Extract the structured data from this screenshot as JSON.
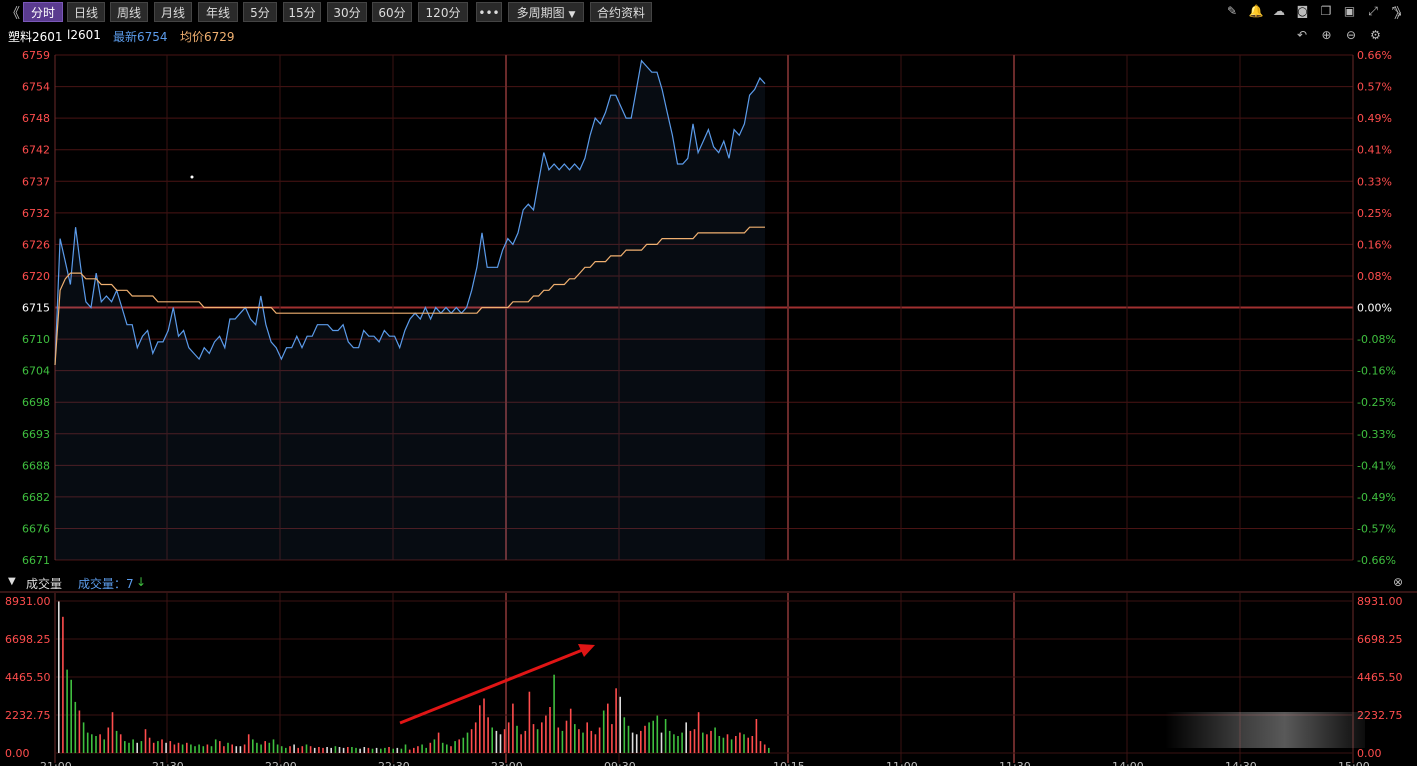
{
  "toolbar": {
    "back_glyph": "《",
    "forward_glyph": "》",
    "periods": [
      "分时",
      "日线",
      "周线",
      "月线",
      "年线",
      "5分",
      "15分",
      "30分",
      "60分",
      "120分"
    ],
    "active_period": "分时",
    "more_label": "•••",
    "multi_period_label": "多周期图",
    "contract_info_label": "合约资料",
    "right_icons": [
      "edit-icon",
      "bell-icon",
      "cloud-icon",
      "camera-icon",
      "copy-icon",
      "window-icon",
      "expand-icon",
      "collapse-icon"
    ],
    "sub_icons": [
      "undo-icon",
      "zoom-in-icon",
      "zoom-out-icon",
      "settings-icon"
    ]
  },
  "info": {
    "name": "塑料2601",
    "code": "l2601",
    "latest": "最新6754",
    "avg": "均价6729"
  },
  "volume_header": {
    "title": "成交量",
    "value_label": "成交量：7",
    "arrow": "↓"
  },
  "colors": {
    "up": "#ff4d4d",
    "down": "#3fbf3f",
    "price_line": "#5b9bea",
    "avg_line": "#f0b070",
    "grid": "#5a1a1a",
    "arrow": "#e01515"
  },
  "chart_data": [
    {
      "type": "line",
      "ylim": [
        6671,
        6759
      ],
      "y_ticks_left": [
        "6759",
        "6754",
        "6748",
        "6742",
        "6737",
        "6732",
        "6726",
        "6720",
        "6715",
        "6710",
        "6704",
        "6698",
        "6693",
        "6688",
        "6682",
        "6676",
        "6671"
      ],
      "y_ticks_right": [
        "0.66%",
        "0.57%",
        "0.49%",
        "0.41%",
        "0.33%",
        "0.25%",
        "0.16%",
        "0.08%",
        "0.00%",
        "-0.08%",
        "-0.16%",
        "-0.25%",
        "-0.33%",
        "-0.41%",
        "-0.49%",
        "-0.57%",
        "-0.66%"
      ],
      "reference_price": 6715,
      "series": [
        {
          "values": [
            6705,
            6727,
            6723,
            6719,
            6729,
            6722,
            6716,
            6715,
            6721,
            6716,
            6717,
            6716,
            6718,
            6715,
            6712,
            6712,
            6708,
            6710,
            6711,
            6707,
            6709,
            6709,
            6711,
            6715,
            6710,
            6711,
            6708,
            6707,
            6706,
            6708,
            6707,
            6709,
            6710,
            6708,
            6713,
            6713,
            6714,
            6715,
            6713,
            6712,
            6717,
            6712,
            6709,
            6708,
            6706,
            6708,
            6708,
            6710,
            6708,
            6710,
            6710,
            6712,
            6712,
            6712,
            6711,
            6711,
            6712,
            6709,
            6708,
            6708,
            6711,
            6710,
            6710,
            6709,
            6711,
            6710,
            6710,
            6708,
            6711,
            6713,
            6714,
            6713,
            6715,
            6713,
            6715,
            6714,
            6715,
            6714,
            6715,
            6714,
            6715,
            6718,
            6722,
            6728,
            6722,
            6722,
            6722,
            6725,
            6727,
            6726,
            6728,
            6732,
            6733,
            6732,
            6737,
            6742,
            6739,
            6740,
            6739,
            6740,
            6739,
            6740,
            6739,
            6741,
            6745,
            6748,
            6747,
            6749,
            6752,
            6752,
            6750,
            6748,
            6748,
            6753,
            6758,
            6757,
            6756,
            6756,
            6753,
            6749,
            6745,
            6740,
            6740,
            6741,
            6747,
            6742,
            6744,
            6746,
            6743,
            6742,
            6744,
            6741,
            6746,
            6745,
            6747,
            6752,
            6753,
            6755,
            6754
          ]
        },
        {
          "values": [
            6705,
            6718,
            6720,
            6721,
            6721,
            6721,
            6720,
            6720,
            6720,
            6719,
            6719,
            6719,
            6718,
            6718,
            6718,
            6717,
            6717,
            6717,
            6717,
            6717,
            6716,
            6716,
            6716,
            6716,
            6716,
            6716,
            6716,
            6716,
            6716,
            6715,
            6715,
            6715,
            6715,
            6715,
            6715,
            6715,
            6715,
            6715,
            6715,
            6715,
            6715,
            6715,
            6715,
            6714,
            6714,
            6714,
            6714,
            6714,
            6714,
            6714,
            6714,
            6714,
            6714,
            6714,
            6714,
            6714,
            6714,
            6714,
            6714,
            6714,
            6714,
            6714,
            6714,
            6714,
            6714,
            6714,
            6714,
            6714,
            6714,
            6714,
            6714,
            6714,
            6714,
            6714,
            6714,
            6714,
            6714,
            6714,
            6714,
            6714,
            6714,
            6714,
            6714,
            6715,
            6715,
            6715,
            6715,
            6715,
            6715,
            6716,
            6716,
            6716,
            6716,
            6717,
            6717,
            6718,
            6718,
            6719,
            6719,
            6719,
            6720,
            6720,
            6721,
            6722,
            6722,
            6723,
            6723,
            6723,
            6724,
            6724,
            6724,
            6725,
            6725,
            6725,
            6725,
            6726,
            6726,
            6726,
            6727,
            6727,
            6727,
            6727,
            6727,
            6727,
            6727,
            6728,
            6728,
            6728,
            6728,
            6728,
            6728,
            6728,
            6728,
            6728,
            6728,
            6729,
            6729,
            6729,
            6729
          ]
        }
      ],
      "x_ticks": [
        "21:00",
        "21:30",
        "22:00",
        "22:30",
        "23:00",
        "09:30",
        "10:15",
        "11:00",
        "11:30",
        "14:00",
        "14:30",
        "15:00"
      ]
    },
    {
      "type": "bar",
      "ylim": [
        0,
        8931
      ],
      "y_ticks": [
        "8931.00",
        "6698.25",
        "4465.50",
        "2232.75",
        "0.00"
      ],
      "values": [
        8900,
        8000,
        4900,
        4300,
        3000,
        2500,
        1800,
        1200,
        1100,
        1000,
        1100,
        800,
        1500,
        2400,
        1300,
        1100,
        700,
        600,
        800,
        600,
        700,
        1400,
        900,
        600,
        700,
        800,
        600,
        700,
        500,
        600,
        500,
        600,
        500,
        400,
        500,
        400,
        500,
        400,
        800,
        700,
        400,
        600,
        500,
        400,
        400,
        500,
        1100,
        800,
        600,
        500,
        700,
        600,
        800,
        500,
        400,
        300,
        400,
        500,
        300,
        400,
        500,
        400,
        300,
        350,
        300,
        350,
        300,
        400,
        350,
        300,
        350,
        350,
        300,
        250,
        350,
        300,
        250,
        300,
        250,
        300,
        350,
        250,
        300,
        250,
        500,
        200,
        300,
        400,
        500,
        300,
        600,
        800,
        1200,
        600,
        500,
        400,
        700,
        800,
        900,
        1200,
        1400,
        1800,
        2800,
        3200,
        2100,
        1500,
        1300,
        1100,
        1400,
        1800,
        2900,
        1600,
        1100,
        1300,
        3600,
        1700,
        1400,
        1800,
        2200,
        2700,
        4600,
        1500,
        1300,
        1900,
        2600,
        1700,
        1400,
        1200,
        1800,
        1300,
        1100,
        1500,
        2500,
        2900,
        1700,
        3800,
        3300,
        2100,
        1600,
        1200,
        1100,
        1300,
        1600,
        1800,
        1900,
        2200,
        1200,
        2000,
        1300,
        1100,
        1000,
        1200,
        1800,
        1300,
        1400,
        2400,
        1200,
        1100,
        1300,
        1500,
        1000,
        900,
        1100,
        800,
        1000,
        1200,
        1100,
        900,
        1000,
        2000,
        700,
        500,
        300
      ],
      "x_ticks": [
        "21:00",
        "21:30",
        "22:00",
        "22:30",
        "23:00",
        "09:30",
        "10:15",
        "11:00",
        "11:30",
        "14:00",
        "14:30",
        "15:00"
      ]
    }
  ]
}
